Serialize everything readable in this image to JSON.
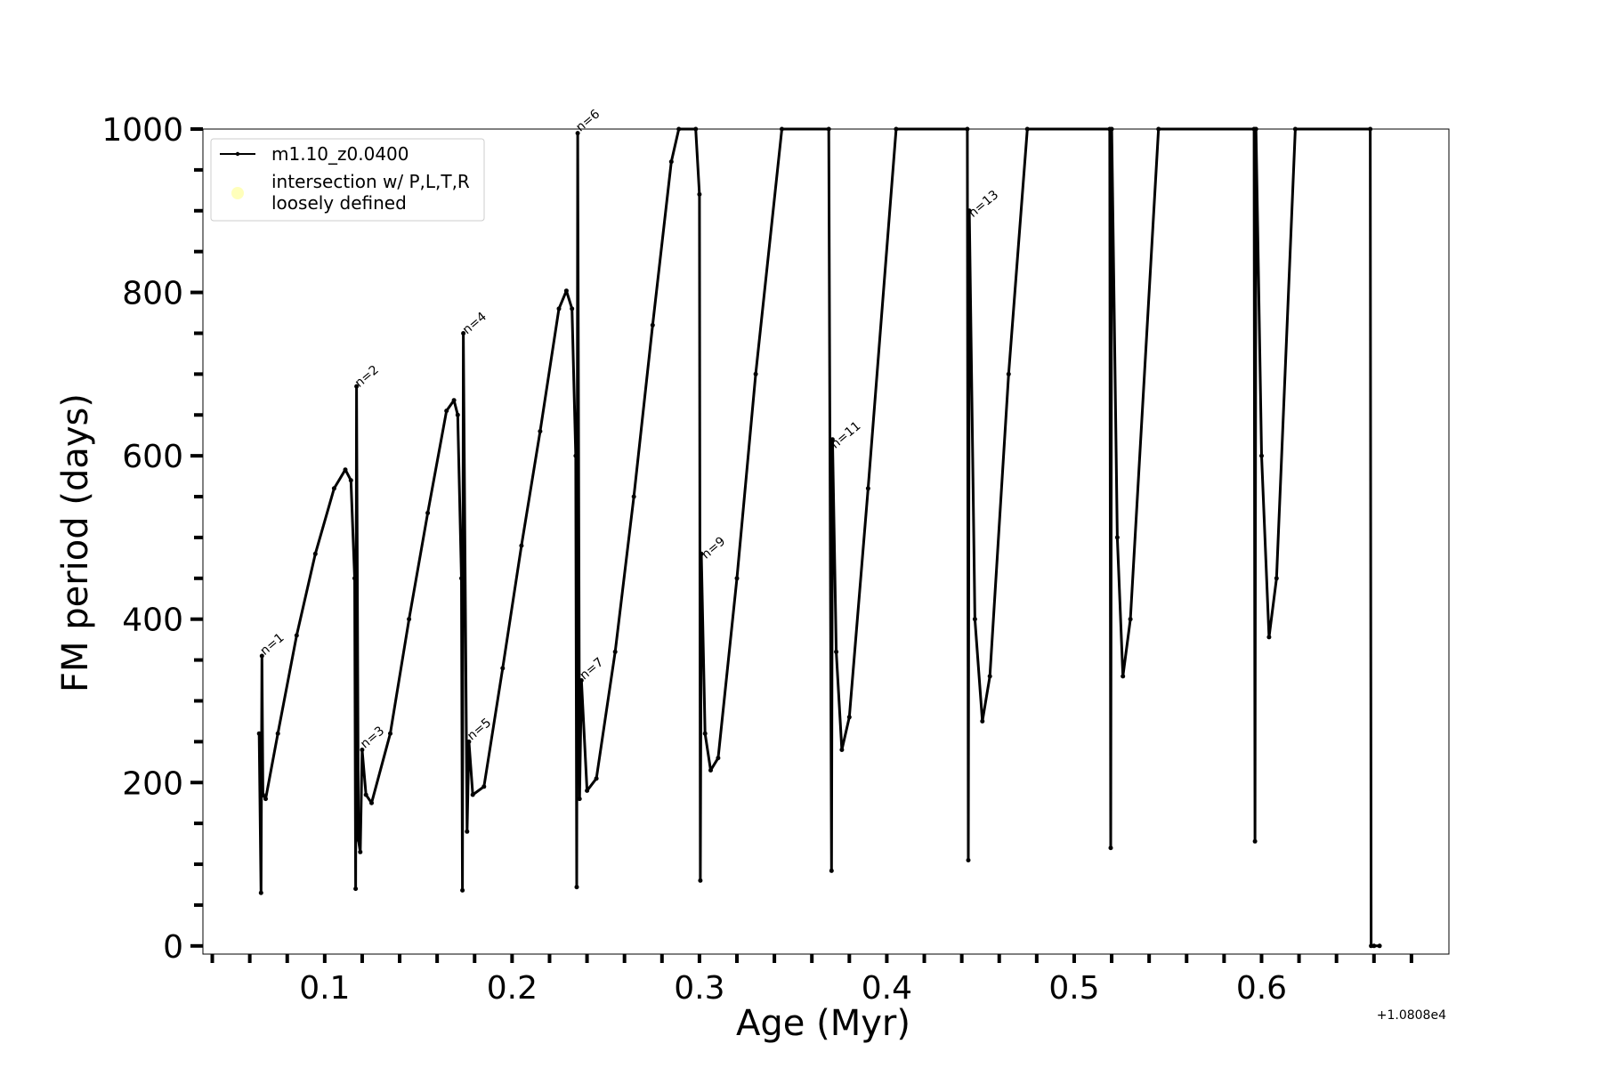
{
  "chart_data": {
    "type": "line",
    "xlabel": "Age (Myr)",
    "ylabel": "FM period (days)",
    "x_offset_label": "+1.0808e4",
    "xlim": [
      0.035,
      0.7
    ],
    "ylim": [
      -10,
      1000
    ],
    "x_ticks": [
      0.1,
      0.2,
      0.3,
      0.4,
      0.5,
      0.6
    ],
    "x_tick_labels": [
      "0.1",
      "0.2",
      "0.3",
      "0.4",
      "0.5",
      "0.6"
    ],
    "y_ticks": [
      0,
      200,
      400,
      600,
      800,
      1000
    ],
    "y_tick_labels": [
      "0",
      "200",
      "400",
      "600",
      "800",
      "1000"
    ],
    "grid": false,
    "legend_position": "top-left",
    "legend": [
      {
        "label": "m1.10_z0.0400",
        "marker": "line-dot",
        "color": "#000000"
      },
      {
        "label": "intersection w/ P,L,T,R\nloosely defined",
        "marker": "circle",
        "color": "#ffffaa"
      }
    ],
    "series": [
      {
        "name": "m1.10_z0.0400",
        "color": "#000000",
        "points": [
          [
            0.065,
            260
          ],
          [
            0.066,
            65
          ],
          [
            0.0665,
            355
          ],
          [
            0.067,
            185
          ],
          [
            0.0685,
            180
          ],
          [
            0.075,
            260
          ],
          [
            0.085,
            380
          ],
          [
            0.095,
            480
          ],
          [
            0.105,
            560
          ],
          [
            0.111,
            583
          ],
          [
            0.114,
            570
          ],
          [
            0.116,
            450
          ],
          [
            0.1165,
            70
          ],
          [
            0.117,
            685
          ],
          [
            0.118,
            130
          ],
          [
            0.119,
            115
          ],
          [
            0.12,
            240
          ],
          [
            0.122,
            185
          ],
          [
            0.125,
            175
          ],
          [
            0.135,
            260
          ],
          [
            0.145,
            400
          ],
          [
            0.155,
            530
          ],
          [
            0.165,
            655
          ],
          [
            0.169,
            668
          ],
          [
            0.171,
            650
          ],
          [
            0.173,
            450
          ],
          [
            0.1735,
            68
          ],
          [
            0.174,
            750
          ],
          [
            0.176,
            140
          ],
          [
            0.177,
            250
          ],
          [
            0.179,
            185
          ],
          [
            0.185,
            195
          ],
          [
            0.195,
            340
          ],
          [
            0.205,
            490
          ],
          [
            0.215,
            630
          ],
          [
            0.225,
            780
          ],
          [
            0.229,
            802
          ],
          [
            0.232,
            780
          ],
          [
            0.234,
            600
          ],
          [
            0.2345,
            72
          ],
          [
            0.235,
            995
          ],
          [
            0.236,
            180
          ],
          [
            0.237,
            325
          ],
          [
            0.24,
            190
          ],
          [
            0.245,
            205
          ],
          [
            0.255,
            360
          ],
          [
            0.265,
            550
          ],
          [
            0.275,
            760
          ],
          [
            0.285,
            960
          ],
          [
            0.289,
            1000
          ],
          [
            0.298,
            1000
          ],
          [
            0.3,
            920
          ],
          [
            0.3005,
            80
          ],
          [
            0.301,
            480
          ],
          [
            0.303,
            260
          ],
          [
            0.306,
            215
          ],
          [
            0.31,
            230
          ],
          [
            0.32,
            450
          ],
          [
            0.33,
            700
          ],
          [
            0.344,
            1000
          ],
          [
            0.369,
            1000
          ],
          [
            0.3705,
            92
          ],
          [
            0.371,
            620
          ],
          [
            0.373,
            360
          ],
          [
            0.376,
            240
          ],
          [
            0.38,
            280
          ],
          [
            0.39,
            560
          ],
          [
            0.405,
            1000
          ],
          [
            0.443,
            1000
          ],
          [
            0.4435,
            105
          ],
          [
            0.444,
            900
          ],
          [
            0.447,
            400
          ],
          [
            0.451,
            275
          ],
          [
            0.455,
            330
          ],
          [
            0.465,
            700
          ],
          [
            0.475,
            1000
          ],
          [
            0.519,
            1000
          ],
          [
            0.5195,
            120
          ],
          [
            0.52,
            1000
          ],
          [
            0.523,
            500
          ],
          [
            0.526,
            330
          ],
          [
            0.53,
            400
          ],
          [
            0.545,
            1000
          ],
          [
            0.596,
            1000
          ],
          [
            0.5965,
            128
          ],
          [
            0.597,
            1000
          ],
          [
            0.6,
            600
          ],
          [
            0.604,
            378
          ],
          [
            0.608,
            450
          ],
          [
            0.618,
            1000
          ],
          [
            0.658,
            1000
          ],
          [
            0.6585,
            0
          ],
          [
            0.66,
            0
          ],
          [
            0.663,
            0
          ]
        ]
      }
    ],
    "annotations": [
      {
        "text": "n=1",
        "x": 0.0665,
        "y": 352
      },
      {
        "text": "n=2",
        "x": 0.117,
        "y": 680
      },
      {
        "text": "n=3",
        "x": 0.12,
        "y": 238
      },
      {
        "text": "n=4",
        "x": 0.1745,
        "y": 745
      },
      {
        "text": "n=5",
        "x": 0.177,
        "y": 248
      },
      {
        "text": "n=6",
        "x": 0.235,
        "y": 993
      },
      {
        "text": "n=7",
        "x": 0.237,
        "y": 322
      },
      {
        "text": "n=9",
        "x": 0.302,
        "y": 470
      },
      {
        "text": "n=11",
        "x": 0.371,
        "y": 605
      },
      {
        "text": "n=13",
        "x": 0.4445,
        "y": 888
      }
    ]
  }
}
